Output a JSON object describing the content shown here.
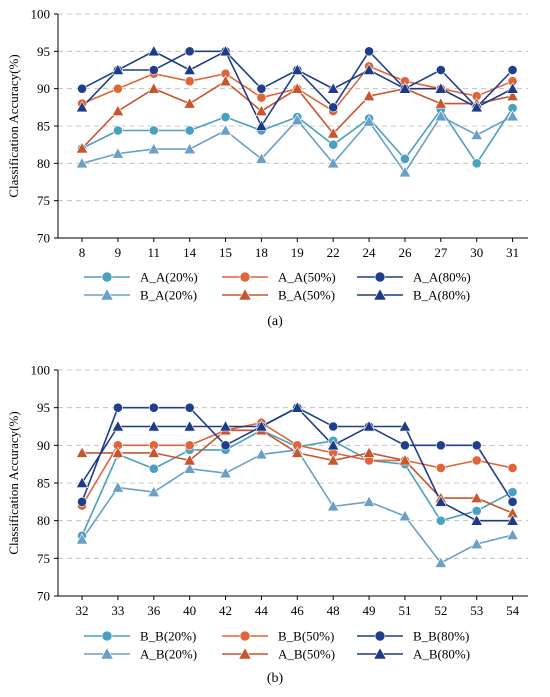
{
  "chart_data": [
    {
      "type": "line",
      "panel_label": "(a)",
      "ylabel": "Classification Accuracy(%)",
      "xlabel": "",
      "categories": [
        "8",
        "9",
        "11",
        "14",
        "15",
        "18",
        "19",
        "22",
        "24",
        "26",
        "27",
        "30",
        "31"
      ],
      "yticks": [
        70,
        75,
        80,
        85,
        90,
        95,
        100
      ],
      "ylim": [
        70,
        100
      ],
      "grid": "horizontal dashed",
      "legend": "below plot, 3 columns",
      "series": [
        {
          "name": "A_A(20%)",
          "marker": "circle",
          "color": "#4aa0bf",
          "values": [
            82,
            84.4,
            84.4,
            84.4,
            86.2,
            84.4,
            86.2,
            82.5,
            86,
            80.6,
            87.2,
            80,
            87.4
          ]
        },
        {
          "name": "B_A(20%)",
          "marker": "triangle",
          "color": "#6aa0c8",
          "values": [
            80,
            81.3,
            81.9,
            81.9,
            84.4,
            80.6,
            85.8,
            80,
            85.6,
            78.8,
            86.3,
            83.8,
            86.3
          ]
        },
        {
          "name": "A_A(50%)",
          "marker": "circle",
          "color": "#e0643a",
          "values": [
            88,
            90,
            92,
            91,
            92,
            88.8,
            90,
            87,
            93,
            91,
            90,
            89,
            91
          ]
        },
        {
          "name": "B_A(50%)",
          "marker": "triangle",
          "color": "#c6562e",
          "values": [
            82,
            87,
            90,
            88,
            91,
            87,
            90,
            84,
            89,
            90,
            88,
            88,
            89
          ]
        },
        {
          "name": "A_A(80%)",
          "marker": "circle",
          "color": "#1f3f8c",
          "values": [
            90,
            92.5,
            92.5,
            95,
            95,
            90,
            92.5,
            87.5,
            95,
            90,
            92.5,
            87.5,
            92.5
          ]
        },
        {
          "name": "B_A(80%)",
          "marker": "triangle",
          "color": "#1d3a86",
          "values": [
            87.5,
            92.5,
            95,
            92.5,
            95,
            85,
            92.5,
            90,
            92.5,
            90,
            90,
            87.5,
            90
          ]
        }
      ]
    },
    {
      "type": "line",
      "panel_label": "(b)",
      "ylabel": "Classification Accuracy(%)",
      "xlabel": "",
      "categories": [
        "32",
        "33",
        "36",
        "40",
        "42",
        "44",
        "46",
        "48",
        "49",
        "51",
        "52",
        "53",
        "54"
      ],
      "yticks": [
        70,
        75,
        80,
        85,
        90,
        95,
        100
      ],
      "ylim": [
        70,
        100
      ],
      "grid": "horizontal dashed",
      "legend": "below plot, 3 columns",
      "series": [
        {
          "name": "B_B(20%)",
          "marker": "circle",
          "color": "#4aa0bf",
          "values": [
            78,
            88.8,
            86.9,
            89.4,
            89.4,
            92,
            89.8,
            90.6,
            88,
            87.5,
            80,
            81.3,
            83.8
          ]
        },
        {
          "name": "A_B(20%)",
          "marker": "triangle",
          "color": "#6aa0c8",
          "values": [
            77.5,
            84.4,
            83.8,
            86.9,
            86.3,
            88.8,
            89.4,
            81.9,
            82.5,
            80.6,
            74.4,
            76.9,
            78.1
          ]
        },
        {
          "name": "B_B(50%)",
          "marker": "circle",
          "color": "#e0643a",
          "values": [
            82,
            90,
            90,
            90,
            92,
            93,
            90,
            89,
            88,
            88,
            87,
            88,
            87
          ]
        },
        {
          "name": "A_B(50%)",
          "marker": "triangle",
          "color": "#c6562e",
          "values": [
            89,
            89,
            89,
            88,
            92,
            92,
            89,
            88,
            89,
            88,
            83,
            83,
            81
          ]
        },
        {
          "name": "B_B(80%)",
          "marker": "circle",
          "color": "#1f3f8c",
          "values": [
            82.5,
            95,
            95,
            95,
            90,
            92.5,
            95,
            92.5,
            92.5,
            90,
            90,
            90,
            82.5
          ]
        },
        {
          "name": "A_B(80%)",
          "marker": "triangle",
          "color": "#1d3a86",
          "values": [
            85,
            92.5,
            92.5,
            92.5,
            92.5,
            92.5,
            95,
            90,
            92.5,
            92.5,
            82.5,
            80,
            80
          ]
        }
      ]
    }
  ]
}
